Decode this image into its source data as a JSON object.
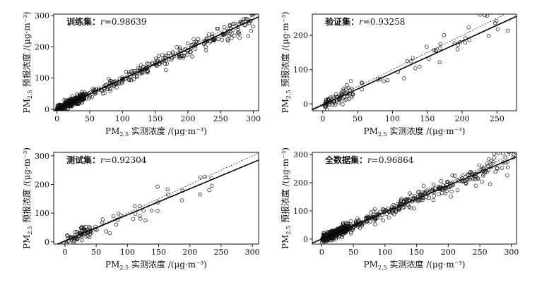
{
  "chart_data": [
    {
      "type": "scatter",
      "title": "训练集",
      "r_label": "r",
      "r_value": "=0.98639",
      "xlabel_prefix": "PM",
      "xlabel_sub": "2.5",
      "xlabel_rest": " 实测浓度 /(μg·m⁻³)",
      "ylabel_prefix": "PM",
      "ylabel_sub": "2.5",
      "ylabel_rest": " 预报浓度 /(μg·m⁻³)",
      "xlim": [
        -5,
        308
      ],
      "ylim": [
        -5,
        305
      ],
      "xticks": [
        0,
        50,
        100,
        150,
        200,
        250,
        300
      ],
      "yticks": [
        0,
        100,
        200,
        300
      ],
      "fit": {
        "slope": 0.96,
        "intercept": 0.5
      },
      "identity_line": true,
      "points": {
        "n": 600,
        "seed": 11,
        "xmax": 300,
        "slope": 0.96,
        "noise": 11,
        "cluster": true
      }
    },
    {
      "type": "scatter",
      "title": "验证集",
      "r_label": "r",
      "r_value": "=0.93258",
      "xlabel_prefix": "PM",
      "xlabel_sub": "2.5",
      "xlabel_rest": " 实测浓度 /(μg·m⁻³)",
      "ylabel_prefix": "PM",
      "ylabel_sub": "2.5",
      "ylabel_rest": " 预报浓度 /(μg·m⁻³)",
      "xlim": [
        -15,
        278
      ],
      "ylim": [
        -20,
        262
      ],
      "xticks": [
        0,
        50,
        100,
        150,
        200,
        250
      ],
      "yticks": [
        0,
        100,
        200
      ],
      "fit": {
        "slope": 0.93,
        "intercept": -3
      },
      "identity_line": true,
      "points": {
        "n": 110,
        "seed": 23,
        "xmax": 270,
        "slope": 0.93,
        "noise": 16,
        "cluster": true
      }
    },
    {
      "type": "scatter",
      "title": "测试集",
      "r_label": "r",
      "r_value": "=0.92304",
      "xlabel_prefix": "PM",
      "xlabel_sub": "2.5",
      "xlabel_rest": " 实测浓度 /(μg·m⁻³)",
      "ylabel_prefix": "PM",
      "ylabel_sub": "2.5",
      "ylabel_rest": " 预报浓度 /(μg·m⁻³)",
      "xlim": [
        -18,
        310
      ],
      "ylim": [
        -8,
        312
      ],
      "xticks": [
        0,
        50,
        100,
        150,
        200,
        250,
        300
      ],
      "yticks": [
        0,
        100,
        200,
        300
      ],
      "fit": {
        "slope": 0.91,
        "intercept": 3
      },
      "identity_line": true,
      "points": {
        "n": 100,
        "seed": 37,
        "xmax": 240,
        "slope": 0.91,
        "noise": 20,
        "cluster": true
      }
    },
    {
      "type": "scatter",
      "title": "全数据集",
      "r_label": "r",
      "r_value": "=0.96864",
      "xlabel_prefix": "PM",
      "xlabel_sub": "2.5",
      "xlabel_rest": " 实测浓度 /(μg·m⁻³)",
      "ylabel_prefix": "PM",
      "ylabel_sub": "2.5",
      "ylabel_rest": " 预报浓度 /(μg·m⁻³)",
      "xlim": [
        -15,
        308
      ],
      "ylim": [
        -18,
        308
      ],
      "xticks": [
        0,
        50,
        100,
        150,
        200,
        250,
        300
      ],
      "yticks": [
        0,
        100,
        200,
        300
      ],
      "fit": {
        "slope": 0.95,
        "intercept": 0
      },
      "identity_line": true,
      "points": {
        "n": 700,
        "seed": 53,
        "xmax": 305,
        "slope": 0.95,
        "noise": 14,
        "cluster": true
      }
    }
  ]
}
